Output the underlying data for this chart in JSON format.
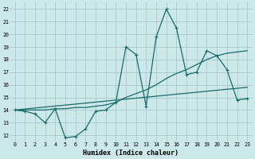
{
  "xlabel": "Humidex (Indice chaleur)",
  "bg_color": "#cce8e8",
  "grid_color": "#aacece",
  "line_color": "#1a6b6b",
  "xlim": [
    -0.5,
    23.5
  ],
  "ylim": [
    11.5,
    22.5
  ],
  "xticks": [
    0,
    1,
    2,
    3,
    4,
    5,
    6,
    7,
    8,
    9,
    10,
    11,
    12,
    13,
    14,
    15,
    16,
    17,
    18,
    19,
    20,
    21,
    22,
    23
  ],
  "yticks": [
    12,
    13,
    14,
    15,
    16,
    17,
    18,
    19,
    20,
    21,
    22
  ],
  "line1_x": [
    0,
    1,
    2,
    3,
    4,
    5,
    6,
    7,
    8,
    9,
    10,
    11,
    12,
    13,
    14,
    15,
    16,
    17,
    18,
    19,
    20,
    21,
    22,
    23
  ],
  "line1_y": [
    14.0,
    13.9,
    13.7,
    13.0,
    14.1,
    11.8,
    11.9,
    12.5,
    13.9,
    14.0,
    14.6,
    19.0,
    18.4,
    14.3,
    19.8,
    22.0,
    20.5,
    16.8,
    17.0,
    18.7,
    18.3,
    17.2,
    14.8,
    14.9
  ],
  "line2_x": [
    0,
    23
  ],
  "line2_y": [
    14.0,
    15.8
  ],
  "line3_x": [
    0,
    1,
    2,
    3,
    4,
    5,
    6,
    7,
    8,
    9,
    10,
    11,
    12,
    13,
    14,
    15,
    16,
    17,
    18,
    19,
    20,
    21,
    22,
    23
  ],
  "line3_y": [
    14.0,
    14.0,
    14.0,
    14.0,
    14.1,
    14.1,
    14.2,
    14.2,
    14.3,
    14.4,
    14.6,
    15.0,
    15.3,
    15.6,
    16.0,
    16.5,
    16.9,
    17.2,
    17.6,
    18.0,
    18.3,
    18.5,
    18.6,
    18.7
  ]
}
